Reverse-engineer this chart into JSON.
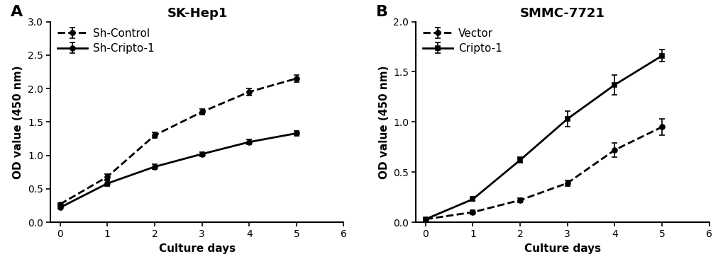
{
  "panel_A": {
    "title": "SK-Hep1",
    "xlabel": "Culture days",
    "ylabel": "OD value (450 nm)",
    "xlim": [
      -0.2,
      6
    ],
    "ylim": [
      0,
      3.0
    ],
    "yticks": [
      0,
      0.5,
      1.0,
      1.5,
      2.0,
      2.5,
      3.0
    ],
    "xticks": [
      0,
      1,
      2,
      3,
      4,
      5,
      6
    ],
    "series": [
      {
        "label": "Sh-Control",
        "x": [
          0,
          1,
          2,
          3,
          4,
          5
        ],
        "y": [
          0.27,
          0.68,
          1.3,
          1.65,
          1.95,
          2.15
        ],
        "yerr": [
          0.02,
          0.04,
          0.04,
          0.04,
          0.05,
          0.05
        ],
        "linestyle": "dashed",
        "marker": "o",
        "markerfilled": true,
        "linewidth": 2.0,
        "markersize": 5
      },
      {
        "label": "Sh-Cripto-1",
        "x": [
          0,
          1,
          2,
          3,
          4,
          5
        ],
        "y": [
          0.22,
          0.58,
          0.83,
          1.02,
          1.2,
          1.33
        ],
        "yerr": [
          0.02,
          0.04,
          0.04,
          0.03,
          0.04,
          0.04
        ],
        "linestyle": "solid",
        "marker": "o",
        "markerfilled": true,
        "linewidth": 2.0,
        "markersize": 5
      }
    ],
    "panel_label": "A"
  },
  "panel_B": {
    "title": "SMMC-7721",
    "xlabel": "Culture days",
    "ylabel": "OD value (450 nm)",
    "xlim": [
      -0.2,
      6
    ],
    "ylim": [
      0,
      2.0
    ],
    "yticks": [
      0,
      0.5,
      1.0,
      1.5,
      2.0
    ],
    "xticks": [
      0,
      1,
      2,
      3,
      4,
      5,
      6
    ],
    "series": [
      {
        "label": "Vector",
        "x": [
          0,
          1,
          2,
          3,
          4,
          5
        ],
        "y": [
          0.03,
          0.1,
          0.22,
          0.39,
          0.72,
          0.95
        ],
        "yerr": [
          0.01,
          0.02,
          0.02,
          0.03,
          0.07,
          0.08
        ],
        "linestyle": "dashed",
        "marker": "o",
        "markerfilled": true,
        "linewidth": 2.0,
        "markersize": 5
      },
      {
        "label": "Cripto-1",
        "x": [
          0,
          1,
          2,
          3,
          4,
          5
        ],
        "y": [
          0.03,
          0.23,
          0.62,
          1.03,
          1.37,
          1.66
        ],
        "yerr": [
          0.01,
          0.02,
          0.03,
          0.08,
          0.1,
          0.06
        ],
        "linestyle": "solid",
        "marker": "s",
        "markerfilled": true,
        "linewidth": 2.0,
        "markersize": 5
      }
    ],
    "panel_label": "B"
  },
  "background_color": "#ffffff",
  "title_fontsize": 13,
  "label_fontsize": 11,
  "tick_fontsize": 10,
  "legend_fontsize": 11,
  "panel_label_fontsize": 16
}
